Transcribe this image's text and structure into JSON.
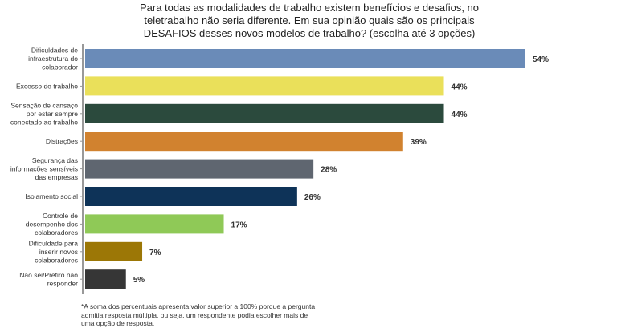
{
  "chart_data": {
    "type": "bar",
    "orientation": "horizontal",
    "title": "Para todas as modalidades de trabalho existem benefícios e desafios, no teletrabalho não seria diferente. Em sua opinião quais são os principais DESAFIOS desses novos modelos de trabalho? (escolha até 3 opções)",
    "categories": [
      [
        "Dificuldades de",
        "infraestrutura do",
        "colaborador"
      ],
      [
        "Excesso de trabalho"
      ],
      [
        "Sensação de cansaço",
        "por estar sempre",
        "conectado ao trabalho"
      ],
      [
        "Distrações"
      ],
      [
        "Segurança das",
        "informações sensíveis",
        "das empresas"
      ],
      [
        "Isolamento social"
      ],
      [
        "Controle de",
        "desempenho dos",
        "colaboradores"
      ],
      [
        "Dificuldade para",
        "inserir novos",
        "colaboradores"
      ],
      [
        "Não sei/Prefiro não",
        "responder"
      ]
    ],
    "values": [
      54,
      44,
      44,
      39,
      28,
      26,
      17,
      7,
      5
    ],
    "value_labels": [
      "54%",
      "44%",
      "44%",
      "39%",
      "28%",
      "26%",
      "17%",
      "7%",
      "5%"
    ],
    "colors": [
      "#6a8bb8",
      "#eae05a",
      "#2b4a3d",
      "#d1822f",
      "#5f6670",
      "#0e3358",
      "#8fc957",
      "#9c7706",
      "#363636"
    ],
    "xlim": [
      0,
      54
    ],
    "grid": false,
    "note": "*A soma dos percentuais apresenta valor superior a 100% porque a pergunta admitia resposta múltipla, ou seja, um respondente podia escolher mais de uma opção de resposta."
  }
}
